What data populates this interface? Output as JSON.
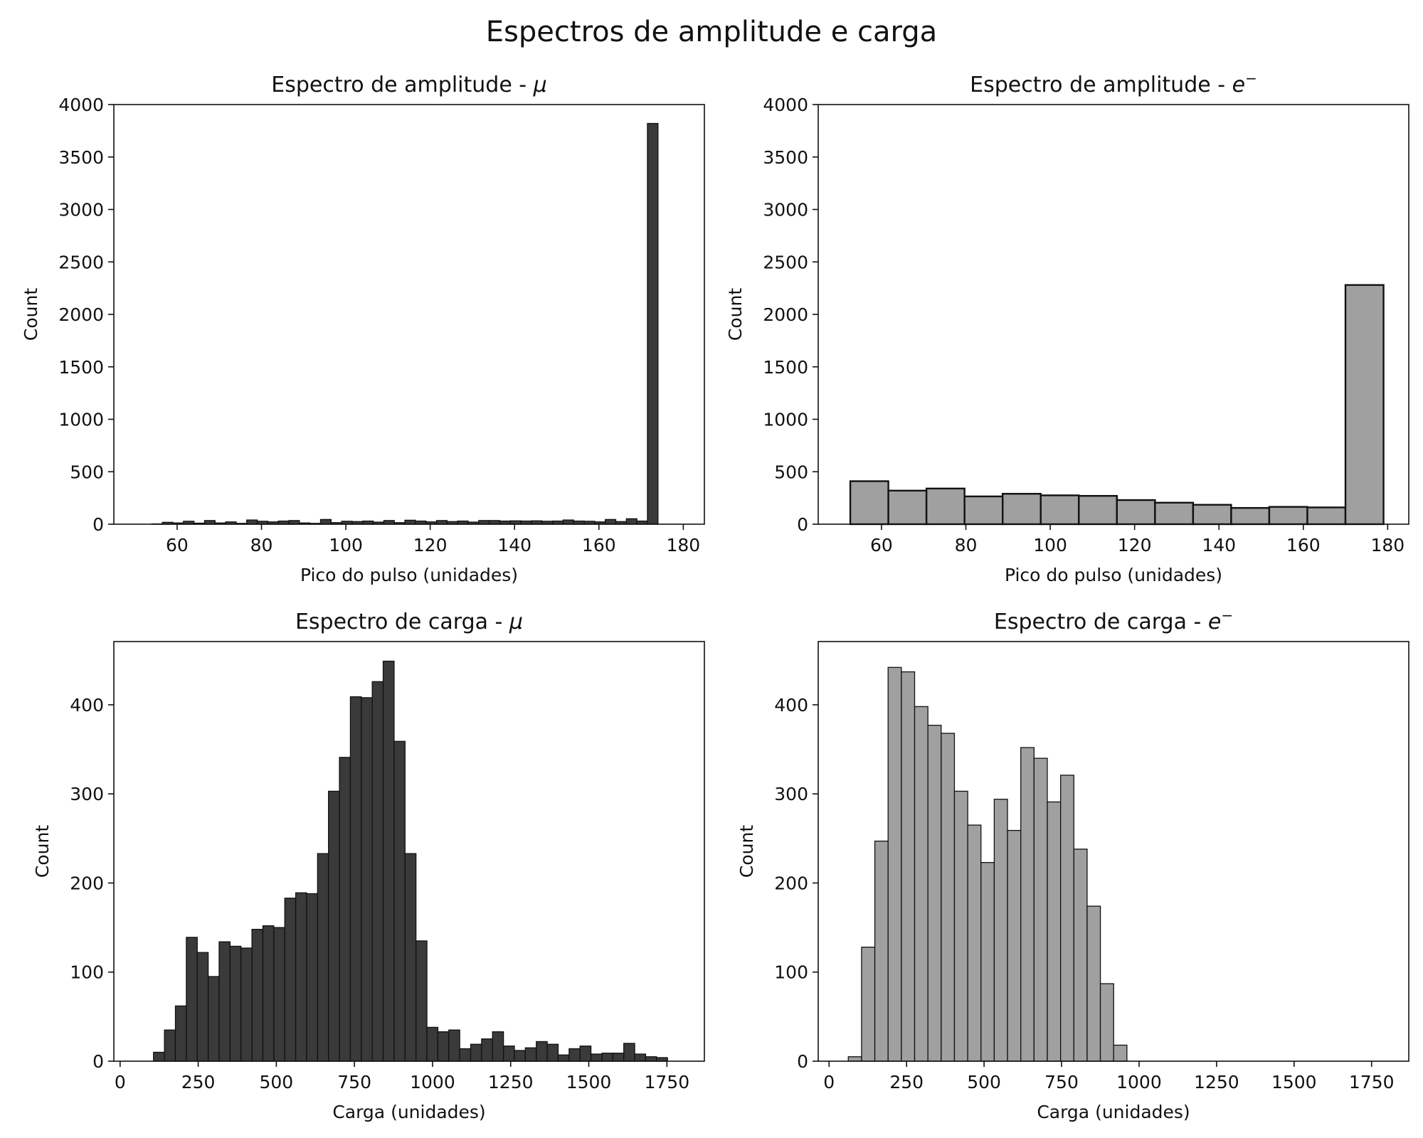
{
  "figure": {
    "suptitle": "Espectros de amplitude e carga"
  },
  "chart_data": [
    {
      "id": "amp-mu",
      "type": "bar",
      "title": "Espectro de amplitude - μ",
      "title_text": "Espectro de amplitude - ",
      "title_symbol": "μ",
      "title_sup": "",
      "xlabel": "Pico do pulso (unidades)",
      "ylabel": "Count",
      "xlim": [
        45,
        185
      ],
      "ylim": [
        0,
        4000
      ],
      "xticks": [
        60,
        80,
        100,
        120,
        140,
        160,
        180
      ],
      "yticks": [
        0,
        500,
        1000,
        1500,
        2000,
        2500,
        3000,
        3500,
        4000
      ],
      "bin_start": 54,
      "bin_width": 2.5,
      "values": [
        3,
        18,
        12,
        28,
        10,
        35,
        12,
        22,
        8,
        40,
        28,
        22,
        30,
        35,
        12,
        8,
        45,
        15,
        28,
        25,
        30,
        20,
        35,
        15,
        38,
        30,
        22,
        35,
        25,
        30,
        20,
        35,
        35,
        30,
        32,
        30,
        32,
        28,
        30,
        40,
        30,
        28,
        22,
        45,
        25,
        52,
        30,
        3820
      ],
      "bar_color": "#3a3a3a",
      "edge_color": "#111111",
      "grid": false
    },
    {
      "id": "amp-e",
      "type": "bar",
      "title": "Espectro de amplitude - e⁻",
      "title_text": "Espectro de amplitude - ",
      "title_symbol": "e",
      "title_sup": "−",
      "xlabel": "Pico do pulso (unidades)",
      "ylabel": "Count",
      "xlim": [
        45,
        185
      ],
      "ylim": [
        0,
        4000
      ],
      "xticks": [
        60,
        80,
        100,
        120,
        140,
        160,
        180
      ],
      "yticks": [
        0,
        500,
        1000,
        1500,
        2000,
        2500,
        3000,
        3500,
        4000
      ],
      "bin_start": 52.6,
      "bin_width": 9.03,
      "values": [
        410,
        320,
        340,
        265,
        290,
        275,
        270,
        230,
        205,
        185,
        155,
        165,
        160,
        2280
      ],
      "bar_color": "#a0a0a0",
      "edge_color": "#111111",
      "grid": false
    },
    {
      "id": "carga-mu",
      "type": "bar",
      "title": "Espectro de carga - μ",
      "title_text": "Espectro de carga - ",
      "title_symbol": "μ",
      "title_sup": "",
      "xlabel": "Carga (unidades)",
      "ylabel": "Count",
      "xlim": [
        -20,
        1870
      ],
      "ylim": [
        0,
        471
      ],
      "xticks": [
        0,
        250,
        500,
        750,
        1000,
        1250,
        1500,
        1750
      ],
      "yticks": [
        0,
        100,
        200,
        300,
        400
      ],
      "bin_start": 107,
      "bin_width": 35,
      "values": [
        10,
        35,
        62,
        139,
        122,
        95,
        134,
        129,
        127,
        148,
        152,
        150,
        183,
        189,
        188,
        233,
        303,
        341,
        409,
        408,
        426,
        449,
        359,
        233,
        135,
        38,
        33,
        35,
        14,
        19,
        25,
        33,
        17,
        12,
        15,
        22,
        19,
        7,
        14,
        17,
        8,
        9,
        9,
        20,
        8,
        5,
        4
      ],
      "bar_color": "#3a3a3a",
      "edge_color": "#111111",
      "grid": false
    },
    {
      "id": "carga-e",
      "type": "bar",
      "title": "Espectro de carga - e⁻",
      "title_text": "Espectro de carga - ",
      "title_symbol": "e",
      "title_sup": "−",
      "xlabel": "Carga (unidades)",
      "ylabel": "Count",
      "xlim": [
        -35,
        1870
      ],
      "ylim": [
        0,
        471
      ],
      "xticks": [
        0,
        250,
        500,
        750,
        1000,
        1250,
        1500,
        1750
      ],
      "yticks": [
        0,
        100,
        200,
        300,
        400
      ],
      "bin_start": 62,
      "bin_width": 42.8,
      "values": [
        5,
        128,
        247,
        442,
        437,
        398,
        377,
        368,
        303,
        265,
        223,
        294,
        259,
        352,
        340,
        291,
        321,
        238,
        174,
        87,
        18
      ],
      "bar_color": "#a0a0a0",
      "edge_color": "#111111",
      "grid": false
    }
  ]
}
